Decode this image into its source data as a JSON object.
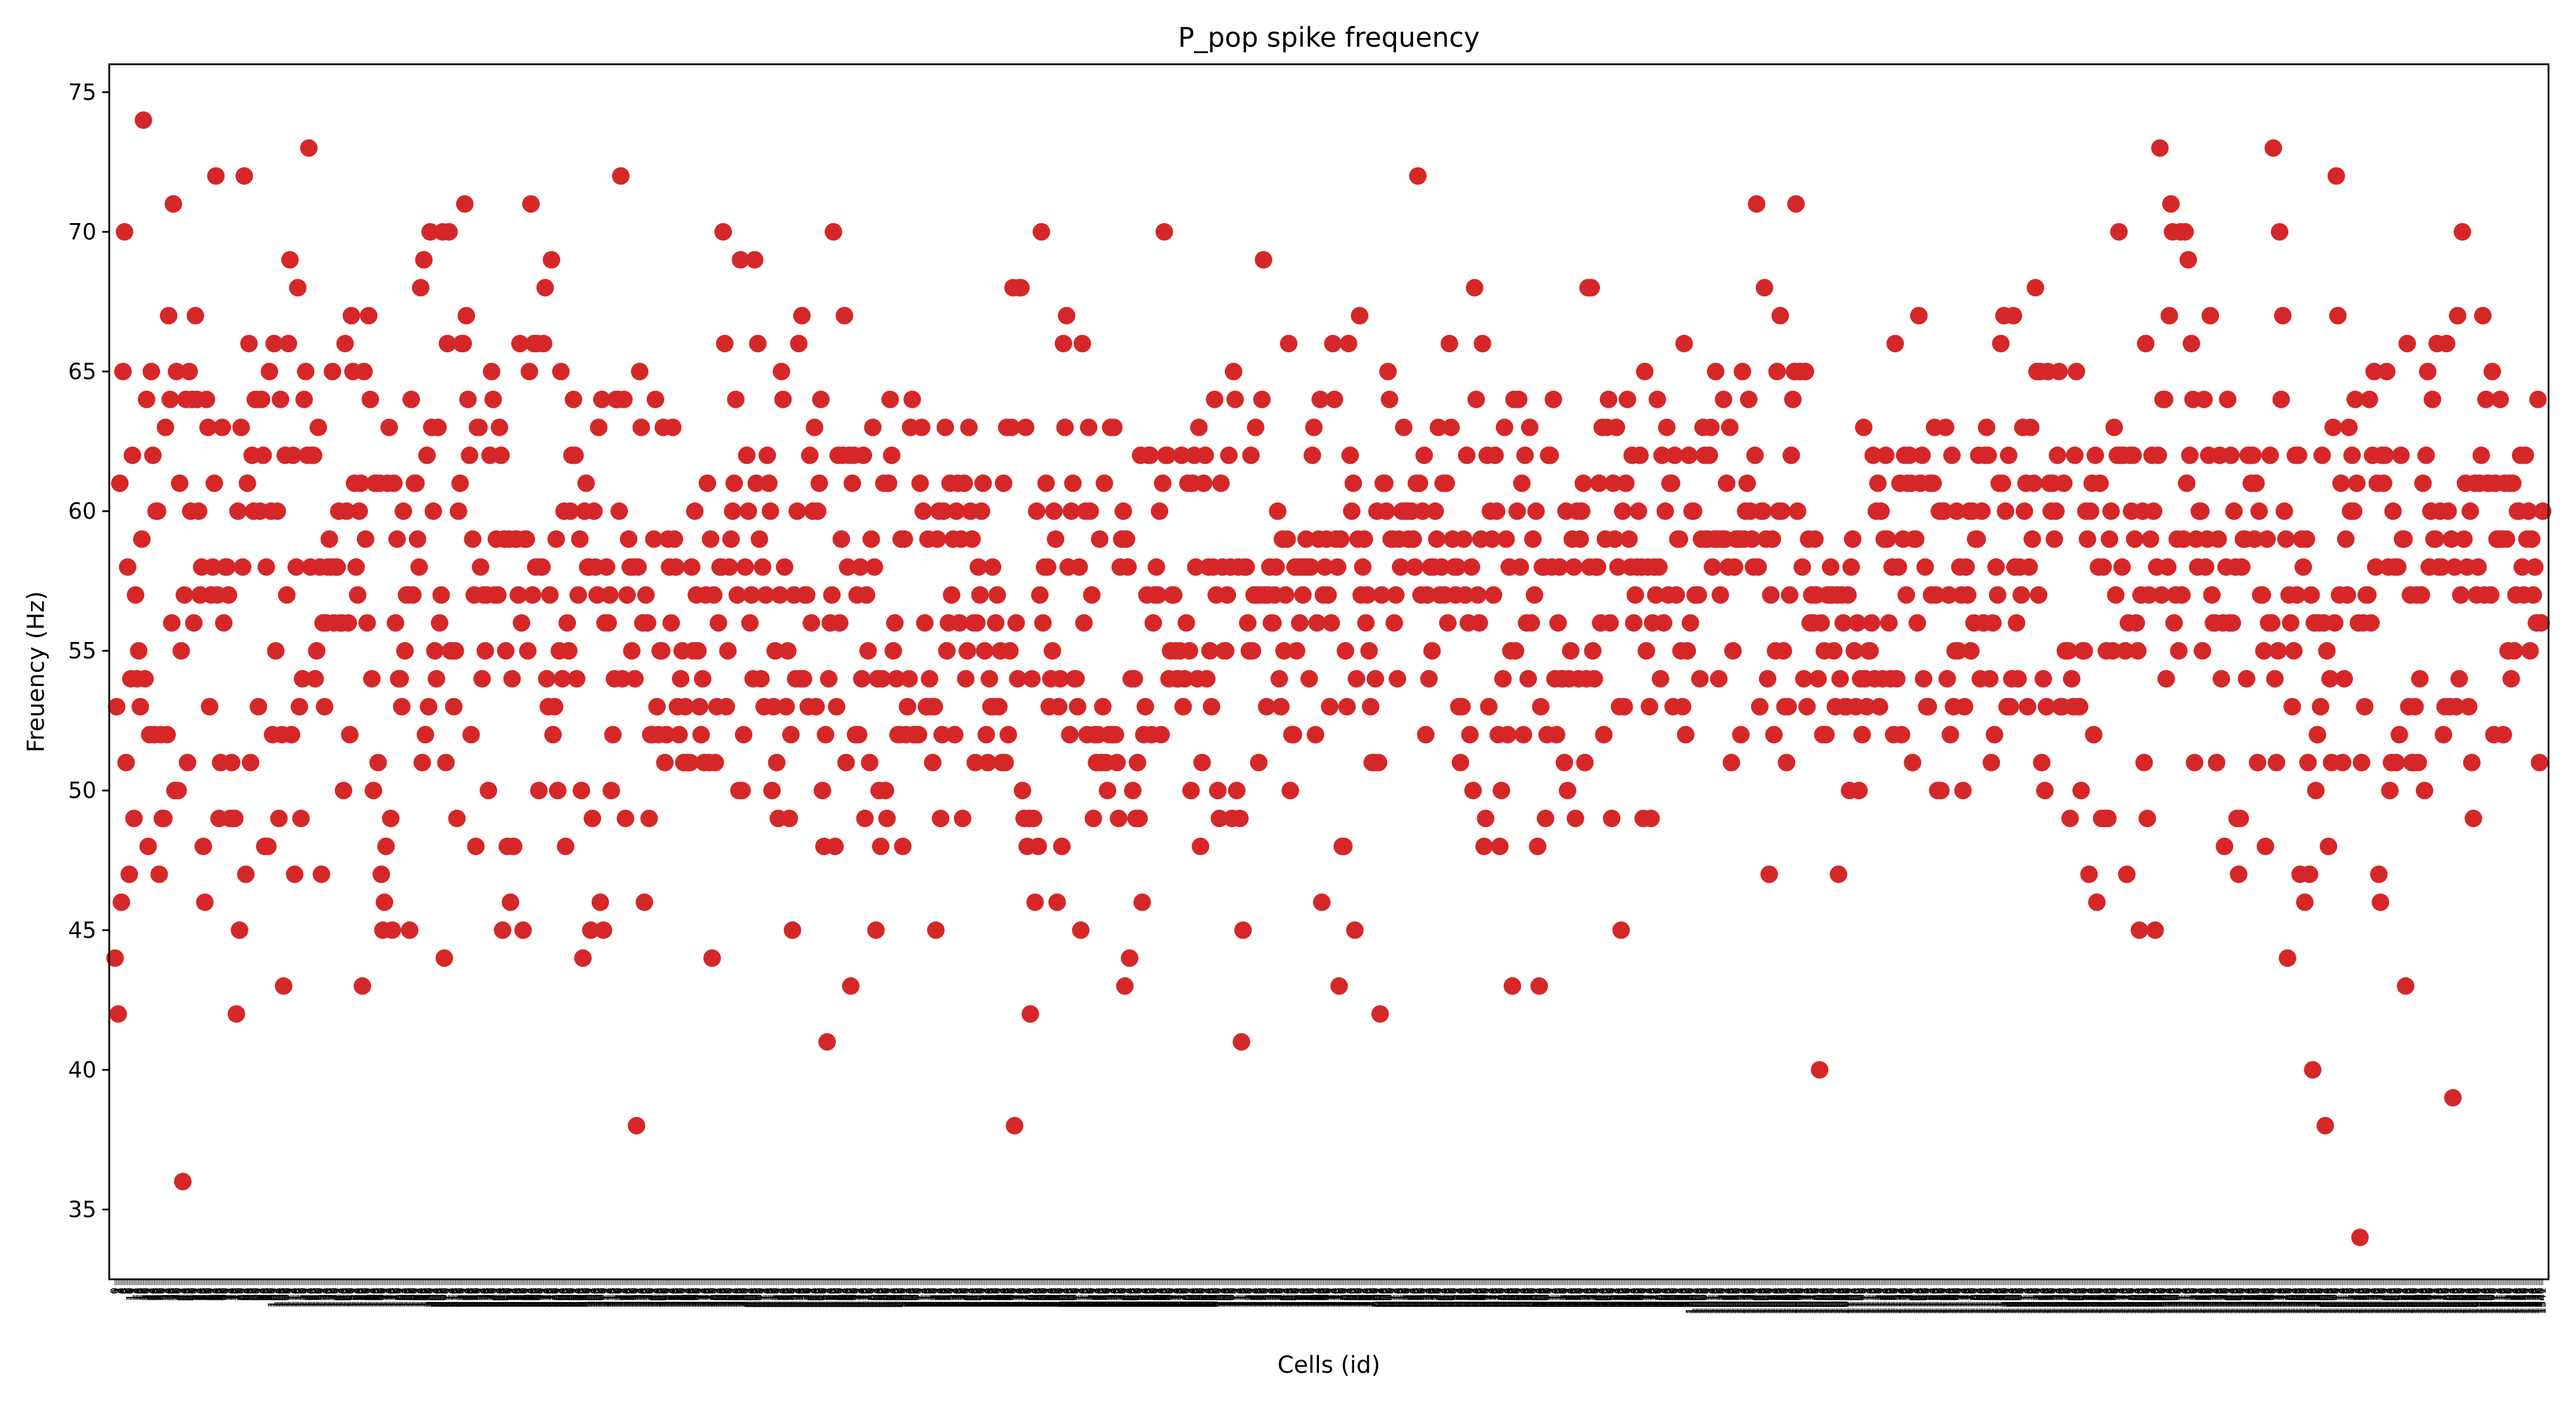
{
  "chart_data": {
    "type": "scatter",
    "title": "P_pop spike frequency",
    "xlabel": "Cells (id)",
    "ylabel": "Freuency (Hz)",
    "ylim": [
      32.5,
      76.0
    ],
    "yticks": [
      35,
      40,
      45,
      50,
      55,
      60,
      65,
      70,
      75
    ],
    "grid": false,
    "legend": "none",
    "marker_color": "#d62728",
    "x_tick_labels": "one rotated, overlapping integer id label per cell (illegible)",
    "y": [
      44,
      53,
      42,
      61,
      46,
      65,
      70,
      51,
      58,
      47,
      54,
      62,
      49,
      57,
      54,
      55,
      53,
      59,
      74,
      54,
      64,
      48,
      52,
      65,
      62,
      52,
      60,
      60,
      47,
      52,
      49,
      49,
      63,
      52,
      67,
      64,
      56,
      71,
      50,
      65,
      50,
      61,
      55,
      36,
      57,
      64,
      51,
      65,
      60,
      64,
      56,
      67,
      64,
      60,
      57,
      58,
      48,
      46,
      64,
      63,
      53,
      57,
      58,
      61,
      72,
      57,
      49,
      51,
      63,
      56,
      58,
      58,
      57,
      49,
      51,
      49,
      49,
      42,
      60,
      45,
      63,
      58,
      72,
      47,
      61,
      66,
      51,
      62,
      60,
      64,
      64,
      53,
      60,
      64,
      62,
      48,
      58,
      48,
      65,
      60,
      52,
      66,
      55,
      60,
      49,
      64,
      52,
      43,
      62,
      57,
      66,
      69,
      52,
      62,
      47,
      58,
      68,
      53,
      49,
      54,
      64,
      65,
      62,
      73,
      58,
      62,
      62,
      54,
      55,
      63,
      58,
      47,
      56,
      53,
      56,
      58,
      59,
      58,
      65,
      56,
      58,
      58,
      60,
      56,
      56,
      50,
      66,
      60,
      56,
      52,
      67,
      65,
      61,
      58,
      57,
      60,
      61,
      43,
      65,
      59,
      56,
      67,
      64,
      54,
      50,
      61,
      61,
      51,
      61,
      47,
      45,
      46,
      48,
      61,
      63,
      49,
      45,
      61,
      56,
      59,
      54,
      54,
      53,
      60,
      55,
      57,
      57,
      45,
      64,
      57,
      61,
      61,
      59,
      58,
      68,
      51,
      69,
      52,
      62,
      53,
      70,
      63,
      60,
      55,
      54,
      63,
      56,
      57,
      70,
      44,
      51,
      66,
      70,
      55,
      55,
      53,
      55,
      49,
      60,
      61,
      66,
      66,
      71,
      67,
      64,
      62,
      52,
      59,
      57,
      48,
      63,
      63,
      58,
      54,
      57,
      55,
      57,
      50,
      62,
      65,
      64,
      57,
      59,
      57,
      63,
      62,
      45,
      59,
      55,
      48,
      59,
      46,
      54,
      48,
      59,
      59,
      57,
      66,
      56,
      45,
      59,
      59,
      55,
      65,
      71,
      57,
      66,
      58,
      66,
      50,
      58,
      58,
      66,
      68,
      54,
      53,
      57,
      69,
      52,
      53,
      59,
      50,
      55,
      65,
      54,
      60,
      48,
      56,
      55,
      60,
      62,
      64,
      62,
      54,
      57,
      59,
      50,
      44,
      60,
      61,
      58,
      58,
      45,
      49,
      60,
      58,
      57,
      63,
      46,
      64,
      45,
      56,
      58,
      56,
      57,
      50,
      52,
      54,
      64,
      64,
      60,
      72,
      54,
      64,
      49,
      57,
      59,
      58,
      55,
      58,
      54,
      38,
      58,
      65,
      63,
      56,
      46,
      57,
      56,
      49,
      52,
      52,
      59,
      64,
      53,
      52,
      55,
      55,
      63,
      51,
      52,
      59,
      58,
      56,
      63,
      59,
      58,
      53,
      52,
      54,
      55,
      51,
      53,
      51,
      51,
      51,
      58,
      55,
      60,
      57,
      55,
      53,
      52,
      54,
      51,
      57,
      61,
      51,
      59,
      44,
      57,
      51,
      53,
      56,
      58,
      58,
      70,
      66,
      53,
      55,
      58,
      59,
      60,
      61,
      64,
      57,
      50,
      69,
      50,
      52,
      58,
      62,
      60,
      56,
      57,
      54,
      69,
      61,
      66,
      59,
      54,
      58,
      53,
      57,
      62,
      61,
      60,
      50,
      53,
      55,
      51,
      49,
      57,
      65,
      64,
      58,
      53,
      55,
      49,
      52,
      45,
      57,
      54,
      60,
      66,
      54,
      67,
      54,
      57,
      57,
      53,
      62,
      56,
      60,
      63,
      53,
      60,
      61,
      64,
      50,
      48,
      52,
      41,
      54,
      56,
      57,
      70,
      48,
      53,
      62,
      56,
      59,
      62,
      67,
      51,
      58,
      62,
      43,
      61,
      62,
      52,
      57,
      52,
      58,
      54,
      62,
      49,
      57,
      55,
      51,
      59,
      63,
      58,
      45,
      54,
      50,
      48,
      54,
      61,
      50,
      49,
      61,
      64,
      62,
      55,
      56,
      54,
      52,
      52,
      59,
      48,
      59,
      52,
      53,
      54,
      63,
      64,
      52,
      52,
      52,
      52,
      61,
      63,
      60,
      56,
      53,
      59,
      54,
      53,
      51,
      53,
      45,
      59,
      60,
      49,
      52,
      60,
      63,
      55,
      56,
      61,
      57,
      59,
      52,
      60,
      61,
      56,
      59,
      49,
      61,
      54,
      55,
      63,
      60,
      59,
      56,
      51,
      56,
      58,
      57,
      60,
      61,
      55,
      52,
      51,
      54,
      53,
      58,
      53,
      56,
      57,
      53,
      55,
      51,
      61,
      51,
      63,
      52,
      55,
      63,
      68,
      38,
      56,
      54,
      68,
      68,
      50,
      49,
      63,
      48,
      49,
      42,
      54,
      49,
      46,
      60,
      48,
      57,
      70,
      56,
      58,
      61,
      58,
      53,
      54,
      55,
      60,
      59,
      46,
      53,
      54,
      48,
      66,
      63,
      67,
      58,
      52,
      60,
      61,
      54,
      54,
      53,
      58,
      45,
      66,
      56,
      60,
      52,
      63,
      60,
      57,
      49,
      52,
      51,
      52,
      59,
      51,
      53,
      61,
      51,
      50,
      52,
      63,
      52,
      63,
      52,
      51,
      49,
      58,
      59,
      60,
      43,
      59,
      58,
      44,
      54,
      50,
      54,
      49,
      51,
      49,
      62,
      46,
      52,
      53,
      57,
      62,
      62,
      52,
      56,
      57,
      58,
      57,
      60,
      52,
      61,
      70,
      62,
      62,
      54,
      55,
      57,
      57,
      55,
      54,
      54,
      55,
      62,
      53,
      54,
      56,
      61,
      55,
      50,
      61,
      62,
      58,
      54,
      63,
      48,
      51,
      61,
      62,
      54,
      58,
      55,
      53,
      58,
      64,
      57,
      50,
      49,
      61,
      58,
      55,
      55,
      57,
      62,
      58,
      49,
      65,
      64,
      50,
      58,
      49,
      41,
      45,
      58,
      58,
      56,
      55,
      62,
      55,
      57,
      63,
      57,
      51,
      57,
      64,
      69,
      57,
      53,
      57,
      58,
      56,
      56,
      57,
      58,
      60,
      54,
      53,
      59,
      55,
      57,
      59,
      66,
      50,
      52,
      52,
      58,
      55,
      58,
      56,
      58,
      57,
      58,
      59,
      58,
      54,
      58,
      62,
      63,
      52,
      56,
      59,
      64,
      46,
      57,
      58,
      59,
      57,
      53,
      56,
      66,
      64,
      59,
      58,
      43,
      59,
      48,
      48,
      55,
      53,
      66,
      62,
      60,
      61,
      45,
      54,
      59,
      67,
      57,
      58,
      59,
      56,
      57,
      55,
      53,
      51,
      51,
      54,
      60,
      51,
      42,
      57,
      61,
      61,
      60,
      65,
      64,
      59,
      59,
      56,
      57,
      54,
      59,
      58,
      60,
      63,
      60,
      60,
      59,
      60,
      60,
      59,
      58,
      61,
      72,
      61,
      57,
      60,
      62,
      52,
      57,
      54,
      58,
      55,
      58,
      60,
      59,
      63,
      57,
      58,
      61,
      57,
      61,
      56,
      66,
      63,
      59,
      58,
      57,
      58,
      53,
      51,
      53,
      59,
      57,
      62,
      56,
      52,
      58,
      50,
      68,
      64,
      57,
      56,
      59,
      66,
      48,
      49,
      62,
      53,
      60,
      59,
      57,
      62,
      60,
      52,
      48,
      50,
      54,
      63,
      59,
      52,
      58,
      55,
      43,
      64,
      55,
      60,
      64,
      58,
      61,
      52,
      62,
      56,
      54,
      63,
      56,
      59,
      57,
      60,
      48,
      43,
      53,
      58,
      58,
      49,
      52,
      62,
      62,
      58,
      64,
      54,
      52,
      56,
      58,
      54,
      54,
      51,
      60,
      50,
      54,
      55,
      59,
      58,
      49,
      60,
      54,
      59,
      60,
      61,
      51,
      54,
      68,
      58,
      68,
      55,
      54,
      58,
      58,
      61,
      56,
      63,
      52,
      59,
      63,
      64,
      56,
      49,
      61,
      59,
      63,
      58,
      53,
      45,
      60,
      53,
      61,
      64,
      59,
      58,
      62,
      56,
      57,
      58,
      60,
      62,
      58,
      49,
      65,
      55,
      58,
      53,
      49,
      56,
      58,
      57,
      64,
      58,
      54,
      62,
      56,
      60,
      63,
      57,
      61,
      61,
      53,
      62,
      57,
      59,
      59,
      55,
      53,
      66,
      52,
      55,
      62,
      56,
      60,
      60,
      57,
      57,
      57,
      54,
      59,
      63,
      62,
      59,
      59,
      62,
      63,
      58,
      59,
      65,
      59,
      54,
      57,
      59,
      64,
      59,
      61,
      58,
      63,
      51,
      55,
      58,
      59,
      59,
      59,
      52,
      65,
      59,
      60,
      61,
      64,
      60,
      59,
      58,
      62,
      71,
      58,
      53,
      60,
      60,
      68,
      59,
      54,
      47,
      57,
      59,
      52,
      55,
      65,
      60,
      67,
      60,
      55,
      53,
      51,
      53,
      57,
      62,
      64,
      65,
      71,
      60,
      65,
      65,
      58,
      54,
      65,
      53,
      59,
      56,
      57,
      56,
      59,
      57,
      54,
      40,
      56,
      52,
      55,
      52,
      57,
      57,
      58,
      57,
      55,
      53,
      57,
      47,
      54,
      57,
      56,
      53,
      53,
      57,
      50,
      58,
      59,
      55,
      53,
      56,
      50,
      54,
      52,
      63,
      54,
      53,
      55,
      55,
      56,
      62,
      54,
      60,
      61,
      53,
      60,
      54,
      59,
      62,
      59,
      56,
      54,
      58,
      52,
      66,
      54,
      58,
      61,
      52,
      59,
      62,
      57,
      61,
      62,
      61,
      51,
      59,
      59,
      56,
      67,
      61,
      62,
      54,
      58,
      53,
      53,
      61,
      57,
      61,
      63,
      57,
      50,
      60,
      50,
      60,
      60,
      63,
      54,
      57,
      52,
      62,
      53,
      55,
      60,
      55,
      58,
      57,
      50,
      53,
      58,
      57,
      60,
      55,
      60,
      56,
      59,
      59,
      62,
      54,
      60,
      56,
      62,
      63,
      62,
      54,
      51,
      56,
      52,
      58,
      57,
      61,
      66,
      61,
      67,
      60,
      53,
      62,
      53,
      54,
      67,
      58,
      56,
      54,
      58,
      57,
      63,
      60,
      61,
      53,
      58,
      63,
      59,
      61,
      68,
      65,
      57,
      65,
      51,
      54,
      50,
      53,
      65,
      61,
      60,
      61,
      59,
      60,
      62,
      65,
      53,
      53,
      61,
      55,
      55,
      55,
      49,
      54,
      53,
      62,
      65,
      53,
      53,
      50,
      55,
      55,
      60,
      59,
      47,
      60,
      61,
      52,
      62,
      46,
      58,
      61,
      49,
      58,
      49,
      55,
      49,
      59,
      60,
      55,
      63,
      57,
      62,
      70,
      62,
      58,
      62,
      55,
      47,
      56,
      62,
      60,
      62,
      59,
      56,
      55,
      45,
      57,
      60,
      51,
      66,
      49,
      57,
      59,
      62,
      60,
      45,
      58,
      62,
      73,
      57,
      64,
      64,
      54,
      58,
      67,
      71,
      70,
      56,
      57,
      59,
      55,
      70,
      57,
      59,
      70,
      61,
      69,
      62,
      66,
      64,
      51,
      59,
      58,
      60,
      60,
      55,
      64,
      58,
      59,
      62,
      67,
      57,
      56,
      56,
      51,
      59,
      62,
      54,
      56,
      48,
      58,
      64,
      56,
      62,
      56,
      60,
      58,
      49,
      47,
      49,
      58,
      59,
      59,
      54,
      62,
      62,
      61,
      62,
      59,
      61,
      51,
      60,
      57,
      57,
      55,
      48,
      59,
      56,
      62,
      56,
      73,
      54,
      51,
      55,
      70,
      64,
      67,
      60,
      59,
      44,
      57,
      56,
      53,
      55,
      62,
      57,
      62,
      47,
      59,
      58,
      46,
      59,
      51,
      47,
      57,
      40,
      56,
      50,
      52,
      56,
      53,
      62,
      56,
      38,
      55,
      48,
      54,
      51,
      63,
      56,
      72,
      67,
      57,
      61,
      51,
      54,
      59,
      57,
      63,
      60,
      62,
      60,
      64,
      61,
      56,
      34,
      51,
      56,
      53,
      57,
      57,
      64,
      56,
      62,
      65,
      58,
      61,
      47,
      46,
      62,
      61,
      62,
      65,
      58,
      50,
      51,
      60,
      58,
      51,
      58,
      52,
      62,
      59,
      59,
      43,
      66,
      53,
      57,
      51,
      51,
      53,
      57,
      51,
      54,
      57,
      61,
      50,
      62,
      65,
      58,
      60,
      64,
      59,
      59,
      66,
      58,
      60,
      58,
      52,
      53,
      66,
      60,
      53,
      59,
      39,
      58,
      53,
      67,
      54,
      57,
      70,
      59,
      61,
      58,
      53,
      60,
      51,
      49,
      61,
      57,
      58,
      61,
      62,
      67,
      57,
      64,
      61,
      61,
      57,
      65,
      52,
      61,
      59,
      59,
      64,
      59,
      52,
      61,
      59,
      55,
      61,
      54,
      61,
      55,
      57,
      60,
      60,
      62,
      58,
      57,
      62,
      59,
      60,
      55,
      59,
      57,
      58,
      56,
      64,
      51,
      56,
      60
    ]
  }
}
